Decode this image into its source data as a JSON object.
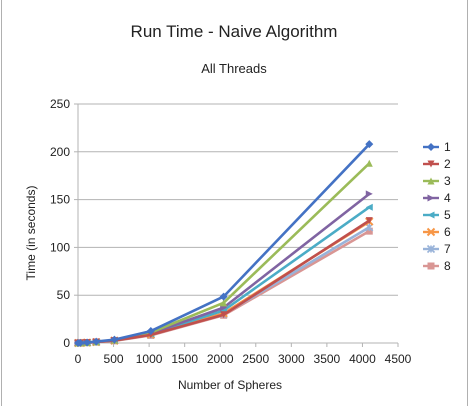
{
  "chart_data": {
    "type": "line",
    "title": "Run Time - Naive Algorithm",
    "subtitle": "All Threads",
    "xlabel": "Number of Spheres",
    "ylabel": "Time (in seconds)",
    "xlim": [
      0,
      4500
    ],
    "ylim": [
      0,
      250
    ],
    "x_ticks": [
      "0",
      "500",
      "1000",
      "1500",
      "2000",
      "2500",
      "3000",
      "3500",
      "4000",
      "4500"
    ],
    "y_ticks": [
      "0",
      "50",
      "100",
      "150",
      "200",
      "250"
    ],
    "grid": "horizontal",
    "legend_position": "right",
    "x": [
      2,
      32,
      128,
      256,
      512,
      1024,
      2048,
      4096
    ],
    "series": [
      {
        "name": "1",
        "color": "#4472c4",
        "marker": "diamond",
        "values": [
          0.01,
          0.1,
          0.5,
          1.5,
          3.5,
          12.5,
          48.5,
          208
        ]
      },
      {
        "name": "2",
        "color": "#c0504d",
        "marker": "triangle-down",
        "values": [
          0.01,
          0.1,
          0.4,
          1.0,
          2.5,
          8.5,
          29.5,
          128
        ]
      },
      {
        "name": "3",
        "color": "#9bbb59",
        "marker": "triangle-up",
        "values": [
          0.01,
          0.1,
          0.45,
          1.2,
          3.0,
          11.0,
          42,
          188
        ]
      },
      {
        "name": "4",
        "color": "#8064a2",
        "marker": "triangle-right",
        "values": [
          0.01,
          0.1,
          0.4,
          1.1,
          2.8,
          10.0,
          37,
          156
        ]
      },
      {
        "name": "5",
        "color": "#4bacc6",
        "marker": "triangle-left",
        "values": [
          0.01,
          0.1,
          0.4,
          1.0,
          2.6,
          9.5,
          34,
          142
        ]
      },
      {
        "name": "6",
        "color": "#f79646",
        "marker": "cross",
        "values": [
          0.01,
          0.1,
          0.4,
          1.0,
          2.5,
          8.8,
          31,
          127
        ]
      },
      {
        "name": "7",
        "color": "#99b3d9",
        "marker": "asterisk",
        "values": [
          0.01,
          0.1,
          0.4,
          1.0,
          2.4,
          8.5,
          30,
          121
        ]
      },
      {
        "name": "8",
        "color": "#d99694",
        "marker": "square",
        "values": [
          0.01,
          0.1,
          0.4,
          0.9,
          2.3,
          8.0,
          29,
          117
        ]
      }
    ]
  }
}
